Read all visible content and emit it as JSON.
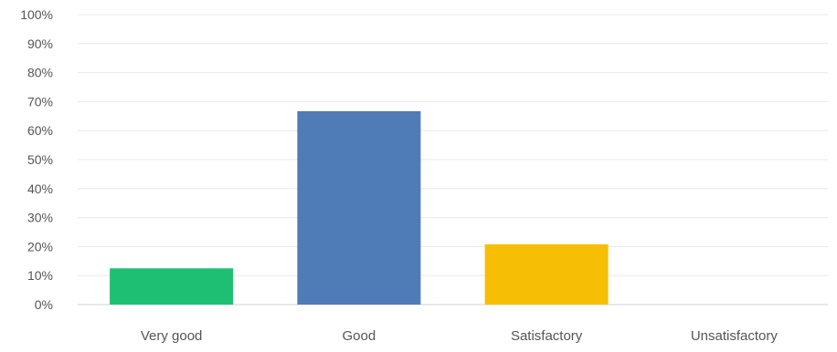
{
  "chart_data": {
    "type": "bar",
    "categories": [
      "Very good",
      "Good",
      "Satisfactory",
      "Unsatisfactory"
    ],
    "values": [
      12.5,
      66.7,
      20.8,
      0
    ],
    "colors": [
      "#1fbf73",
      "#4f7bb7",
      "#f6bf06",
      "#c0c0c0"
    ],
    "ylim": [
      0,
      100
    ],
    "yticks": [
      0,
      10,
      20,
      30,
      40,
      50,
      60,
      70,
      80,
      90,
      100
    ],
    "ytick_format": "%",
    "grid": true,
    "gridColor": "#e8e8e8",
    "axisTextColor": "#555555"
  }
}
